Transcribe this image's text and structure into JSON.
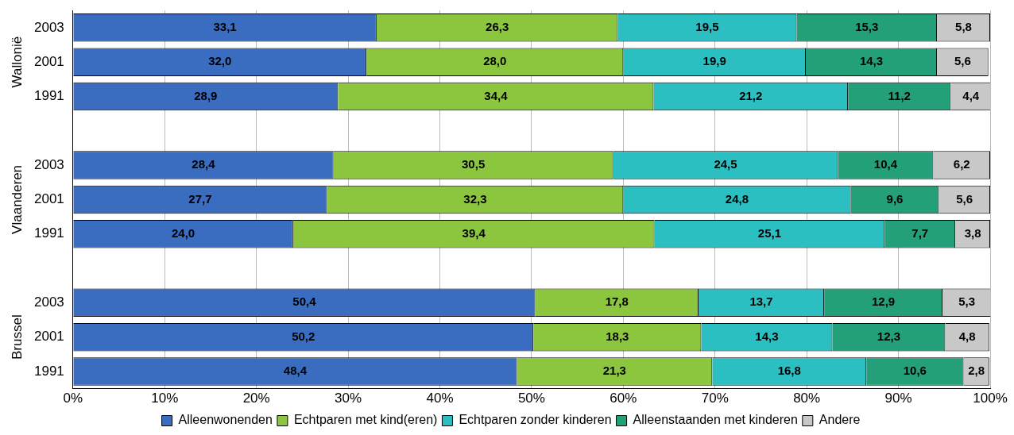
{
  "chart_data": {
    "type": "bar",
    "orientation": "horizontal",
    "stacked": true,
    "grid": "x",
    "legend": "bottom",
    "categories": [
      "2003",
      "2001",
      "1991",
      null,
      "2003",
      "2001",
      "1991",
      null,
      "2003",
      "2001",
      "1991"
    ],
    "annotations": [
      "Wallonië",
      "Vlaanderen",
      "Brussel"
    ],
    "xlim": [
      0,
      100
    ],
    "xticks": [
      {
        "value": 0,
        "label": "0%"
      },
      {
        "value": 10,
        "label": "10%"
      },
      {
        "value": 20,
        "label": "20%"
      },
      {
        "value": 30,
        "label": "30%"
      },
      {
        "value": 40,
        "label": "40%"
      },
      {
        "value": 50,
        "label": "50%"
      },
      {
        "value": 60,
        "label": "60%"
      },
      {
        "value": 70,
        "label": "70%"
      },
      {
        "value": 80,
        "label": "80%"
      },
      {
        "value": 90,
        "label": "90%"
      },
      {
        "value": 100,
        "label": "100%"
      }
    ],
    "series": [
      {
        "name": "Alleenwonenden",
        "color": "#3a6cc0",
        "values": [
          33.1,
          32.0,
          28.9,
          null,
          28.4,
          27.7,
          24.0,
          null,
          50.4,
          50.2,
          48.4
        ],
        "value_labels": [
          "33,1",
          "32,0",
          "28,9",
          null,
          "28,4",
          "27,7",
          "24,0",
          null,
          "50,4",
          "50,2",
          "48,4"
        ]
      },
      {
        "name": "Echtparen met kind(eren)",
        "color": "#8cc63e",
        "values": [
          26.3,
          28.0,
          34.4,
          null,
          30.5,
          32.3,
          39.4,
          null,
          17.8,
          18.3,
          21.3
        ],
        "value_labels": [
          "26,3",
          "28,0",
          "34,4",
          null,
          "30,5",
          "32,3",
          "39,4",
          null,
          "17,8",
          "18,3",
          "21,3"
        ]
      },
      {
        "name": "Echtparen zonder kinderen",
        "color": "#2cbfc2",
        "values": [
          19.5,
          19.9,
          21.2,
          null,
          24.5,
          24.8,
          25.1,
          null,
          13.7,
          14.3,
          16.8
        ],
        "value_labels": [
          "19,5",
          "19,9",
          "21,2",
          null,
          "24,5",
          "24,8",
          "25,1",
          null,
          "13,7",
          "14,3",
          "16,8"
        ]
      },
      {
        "name": "Alleenstaanden met kinderen",
        "color": "#23a07a",
        "values": [
          15.3,
          14.3,
          11.2,
          null,
          10.4,
          9.6,
          7.7,
          null,
          12.9,
          12.3,
          10.6
        ],
        "value_labels": [
          "15,3",
          "14,3",
          "11,2",
          null,
          "10,4",
          "9,6",
          "7,7",
          null,
          "12,9",
          "12,3",
          "10,6"
        ]
      },
      {
        "name": "Andere",
        "color": "#c8c8c8",
        "values": [
          5.8,
          5.6,
          4.4,
          null,
          6.2,
          5.6,
          3.8,
          null,
          5.3,
          4.8,
          2.8
        ],
        "value_labels": [
          "5,8",
          "5,6",
          "4,4",
          null,
          "6,2",
          "5,6",
          "3,8",
          null,
          "5,3",
          "4,8",
          "2,8"
        ]
      }
    ]
  }
}
